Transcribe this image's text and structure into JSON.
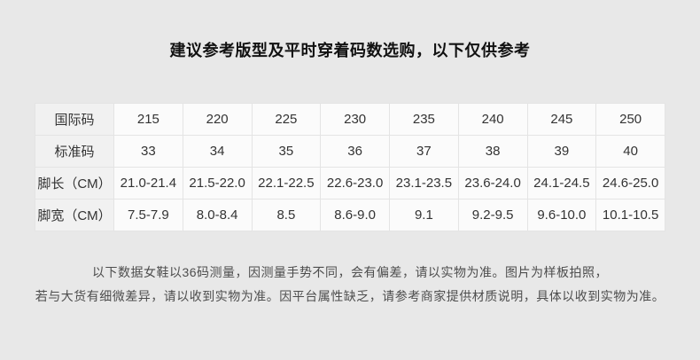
{
  "title": "建议参考版型及平时穿着码数选购，以下仅供参考",
  "size_table": {
    "rows": [
      {
        "key": "international-size",
        "label": "国际码",
        "values": [
          "215",
          "220",
          "225",
          "230",
          "235",
          "240",
          "245",
          "250"
        ]
      },
      {
        "key": "standard-size",
        "label": "标准码",
        "values": [
          "33",
          "34",
          "35",
          "36",
          "37",
          "38",
          "39",
          "40"
        ]
      },
      {
        "key": "foot-length-cm",
        "label": "脚长（CM）",
        "values": [
          "21.0-21.4",
          "21.5-22.0",
          "22.1-22.5",
          "22.6-23.0",
          "23.1-23.5",
          "23.6-24.0",
          "24.1-24.5",
          "24.6-25.0"
        ]
      },
      {
        "key": "foot-width-cm",
        "label": "脚宽（CM）",
        "values": [
          "7.5-7.9",
          "8.0-8.4",
          "8.5",
          "8.6-9.0",
          "9.1",
          "9.2-9.5",
          "9.6-10.0",
          "10.1-10.5"
        ]
      }
    ]
  },
  "disclaimer": {
    "line1": "以下数据女鞋以36码测量，因测量手势不同，会有偏差，请以实物为准。图片为样板拍照，",
    "line2": "若与大货有细微差异，请以收到实物为准。因平台属性缺乏，请参考商家提供材质说明，具体以收到实物为准。"
  },
  "colors": {
    "page_background": "#e8e8e8",
    "cell_background": "#fbfbfb",
    "label_cell_background": "#f1f1f1",
    "border": "#e4e4e4",
    "title_text": "#111111",
    "body_text": "#333333",
    "disclaimer_text": "#4d4d4d"
  }
}
